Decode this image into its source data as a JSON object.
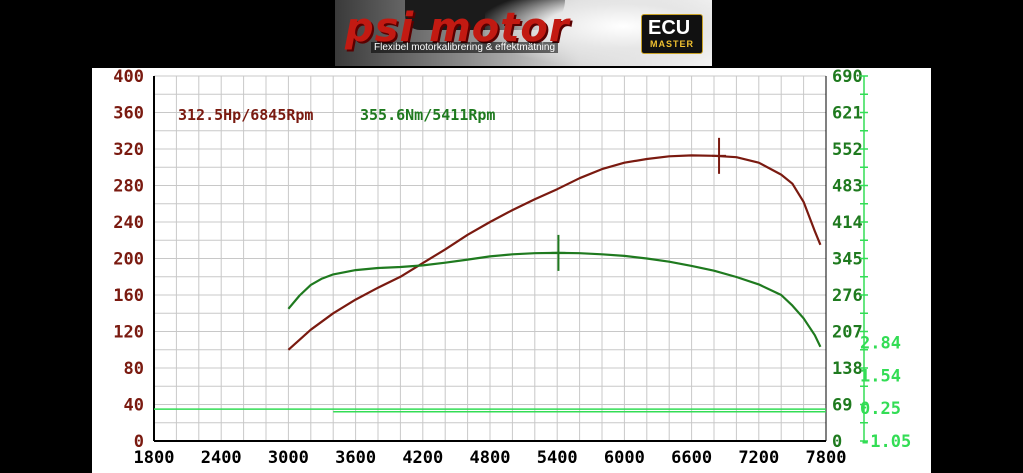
{
  "banner": {
    "brand": "psi motor",
    "tagline": "Flexibel motorkalibrering & effektmätning",
    "badge_main": "ECU",
    "badge_sub": "MASTER"
  },
  "colors": {
    "power": "#7a1a10",
    "torque": "#1f7a1f",
    "aux": "#33dd55",
    "grid": "#c8c8c8",
    "baseline": "#33dd55"
  },
  "chart_data": {
    "type": "line",
    "title": "",
    "xlabel": "",
    "ylabel": "",
    "xlim": [
      1800,
      7800
    ],
    "grid": true,
    "x_ticks": [
      "1800",
      "2400",
      "3000",
      "3600",
      "4200",
      "4800",
      "5400",
      "6000",
      "6600",
      "7200",
      "7800"
    ],
    "y_left_ticks": [
      "400",
      "360",
      "320",
      "280",
      "240",
      "200",
      "160",
      "120",
      "80",
      "40",
      "0"
    ],
    "y_right_ticks": [
      "690",
      "621",
      "552",
      "483",
      "414",
      "345",
      "276",
      "207",
      "138",
      "69",
      "0"
    ],
    "y_right2_ticks": [
      "2.84",
      "1.54",
      "0.25",
      "-1.05"
    ],
    "y_left_range": [
      0,
      400
    ],
    "y_right_range": [
      0,
      690
    ],
    "y_right2_range": [
      -1.05,
      2.84
    ],
    "annotations": [
      {
        "text": "312.5Hp/6845Rpm",
        "color": "power"
      },
      {
        "text": "355.6Nm/5411Rpm",
        "color": "torque"
      }
    ],
    "peaks": [
      {
        "series": "power",
        "x": 6845,
        "y": 312.5
      },
      {
        "series": "torque",
        "x": 5411,
        "y": 355.6
      }
    ],
    "series": [
      {
        "key": "power",
        "color": "power",
        "axis": "left",
        "x": [
          3000,
          3200,
          3400,
          3600,
          3800,
          4000,
          4200,
          4400,
          4600,
          4800,
          5000,
          5200,
          5400,
          5600,
          5800,
          6000,
          6200,
          6400,
          6600,
          6800,
          7000,
          7200,
          7400,
          7500,
          7600,
          7700,
          7750
        ],
        "y": [
          100,
          122,
          140,
          155,
          168,
          180,
          195,
          210,
          226,
          240,
          253,
          265,
          276,
          288,
          298,
          305,
          309,
          312,
          313,
          312.5,
          311,
          305,
          292,
          282,
          262,
          230,
          215
        ]
      },
      {
        "key": "torque",
        "color": "torque",
        "axis": "right",
        "x": [
          3000,
          3100,
          3200,
          3300,
          3400,
          3600,
          3800,
          4000,
          4200,
          4400,
          4600,
          4800,
          5000,
          5200,
          5400,
          5600,
          5800,
          6000,
          6200,
          6400,
          6600,
          6800,
          7000,
          7200,
          7400,
          7500,
          7600,
          7700,
          7750
        ],
        "y": [
          250,
          275,
          295,
          307,
          315,
          323,
          327,
          329,
          332,
          337,
          343,
          349,
          353,
          355,
          355.6,
          355,
          353,
          350,
          345,
          339,
          331,
          322,
          310,
          296,
          276,
          256,
          232,
          200,
          178
        ]
      },
      {
        "key": "baseline",
        "color": "aux",
        "axis": "left",
        "x": [
          1800,
          7800
        ],
        "y": [
          35,
          35
        ]
      },
      {
        "key": "baseline2",
        "color": "aux",
        "axis": "left",
        "x": [
          3400,
          7800
        ],
        "y": [
          32,
          32
        ]
      }
    ]
  }
}
